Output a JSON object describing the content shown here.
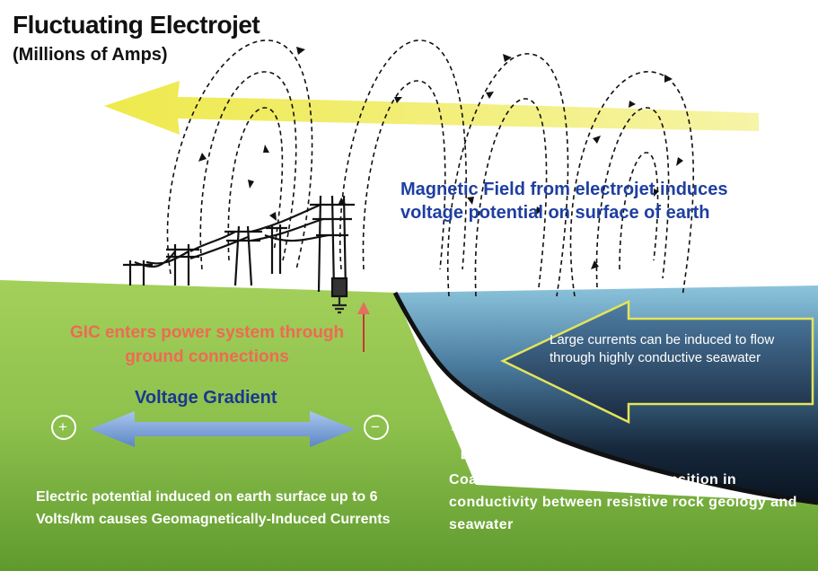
{
  "title": "Fluctuating Electrojet",
  "subtitle": "(Millions of Amps)",
  "labels": {
    "magnetic_field": "Magnetic Field from electrojet induces voltage potential on surface of earth",
    "gic_enters": "GIC enters power system through ground connections",
    "voltage_gradient": "Voltage Gradient",
    "positive_symbol": "+",
    "negative_symbol": "−",
    "large_currents": "Large currents can be induced to flow through highly conductive seawater",
    "electric_potential": "Electric potential induced on earth surface up to 6 Volts/km causes Geomagnetically-Induced Currents",
    "coastal_areas": "Coastal areas cause abrupt transition in conductivity between resistive rock geology and seawater"
  },
  "colors": {
    "electrojet": "#f1ef67",
    "land": "#8fc24d",
    "sea": "#7fbad3",
    "gradient_arrow": "#7fa8dc",
    "gic_text": "#ee6a55",
    "field_text": "#1e3fa0"
  }
}
